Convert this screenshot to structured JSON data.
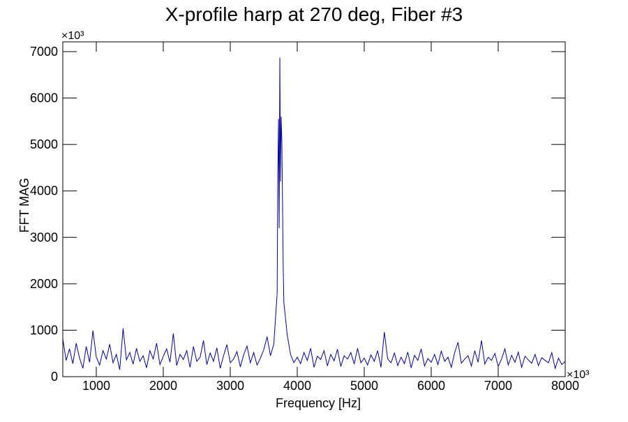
{
  "chart_data": {
    "type": "line",
    "title": "X-profile harp at 270 deg, Fiber #3",
    "x_label": "Frequency [Hz]",
    "y_label": "FFT MAG",
    "x_multiplier": "×10³",
    "y_multiplier": "×10³",
    "xlim": [
      500,
      8000
    ],
    "ylim": [
      0,
      7210
    ],
    "xticks": [
      1000,
      2000,
      3000,
      4000,
      5000,
      6000,
      7000,
      8000
    ],
    "yticks": [
      0,
      1000,
      2000,
      3000,
      4000,
      5000,
      6000,
      7000
    ],
    "x": [
      500,
      550,
      600,
      650,
      700,
      750,
      800,
      850,
      900,
      950,
      1000,
      1050,
      1100,
      1150,
      1200,
      1250,
      1300,
      1350,
      1400,
      1450,
      1500,
      1550,
      1600,
      1650,
      1700,
      1750,
      1800,
      1850,
      1900,
      1950,
      2000,
      2050,
      2100,
      2150,
      2200,
      2250,
      2300,
      2350,
      2400,
      2450,
      2500,
      2550,
      2600,
      2650,
      2700,
      2750,
      2800,
      2850,
      2900,
      2950,
      3000,
      3050,
      3100,
      3150,
      3200,
      3250,
      3300,
      3350,
      3400,
      3450,
      3500,
      3550,
      3600,
      3650,
      3700,
      3710,
      3720,
      3730,
      3740,
      3750,
      3760,
      3770,
      3780,
      3790,
      3800,
      3850,
      3900,
      3950,
      4000,
      4050,
      4100,
      4150,
      4200,
      4250,
      4300,
      4350,
      4400,
      4450,
      4500,
      4550,
      4600,
      4650,
      4700,
      4750,
      4800,
      4850,
      4900,
      4950,
      5000,
      5050,
      5100,
      5150,
      5200,
      5250,
      5300,
      5350,
      5400,
      5450,
      5500,
      5550,
      5600,
      5650,
      5700,
      5750,
      5800,
      5850,
      5900,
      5950,
      6000,
      6050,
      6100,
      6150,
      6200,
      6250,
      6300,
      6350,
      6400,
      6450,
      6500,
      6550,
      6600,
      6650,
      6700,
      6750,
      6800,
      6850,
      6900,
      6950,
      7000,
      7050,
      7100,
      7150,
      7200,
      7250,
      7300,
      7350,
      7400,
      7450,
      7500,
      7550,
      7600,
      7650,
      7700,
      7750,
      7800,
      7850,
      7900,
      7950,
      8000
    ],
    "series": [
      {
        "name": "FFT MAG",
        "color": "#000099",
        "values": [
          820,
          350,
          600,
          280,
          720,
          400,
          180,
          650,
          310,
          990,
          420,
          250,
          560,
          380,
          700,
          300,
          480,
          150,
          1040,
          360,
          520,
          270,
          610,
          330,
          450,
          190,
          560,
          380,
          720,
          260,
          440,
          600,
          310,
          930,
          240,
          480,
          370,
          560,
          200,
          650,
          330,
          420,
          780,
          260,
          510,
          330,
          620,
          180,
          450,
          690,
          300,
          380,
          540,
          210,
          470,
          660,
          300,
          520,
          250,
          400,
          580,
          860,
          450,
          700,
          1800,
          4400,
          5550,
          3200,
          6870,
          4200,
          5600,
          5100,
          3800,
          2400,
          1600,
          900,
          480,
          300,
          420,
          280,
          520,
          350,
          610,
          200,
          440,
          370,
          560,
          230,
          480,
          340,
          590,
          220,
          450,
          380,
          520,
          270,
          610,
          300,
          400,
          250,
          470,
          330,
          560,
          200,
          960,
          380,
          300,
          510,
          240,
          420,
          280,
          530,
          190,
          460,
          350,
          600,
          230,
          390,
          310,
          480,
          260,
          550,
          330,
          420,
          200,
          520,
          740,
          290,
          380,
          450,
          230,
          560,
          310,
          780,
          270,
          420,
          350,
          500,
          220,
          380,
          600,
          250,
          460,
          310,
          530,
          200,
          440,
          360,
          290,
          480,
          240,
          410,
          350,
          300,
          520,
          180,
          400,
          260,
          330
        ]
      }
    ]
  }
}
